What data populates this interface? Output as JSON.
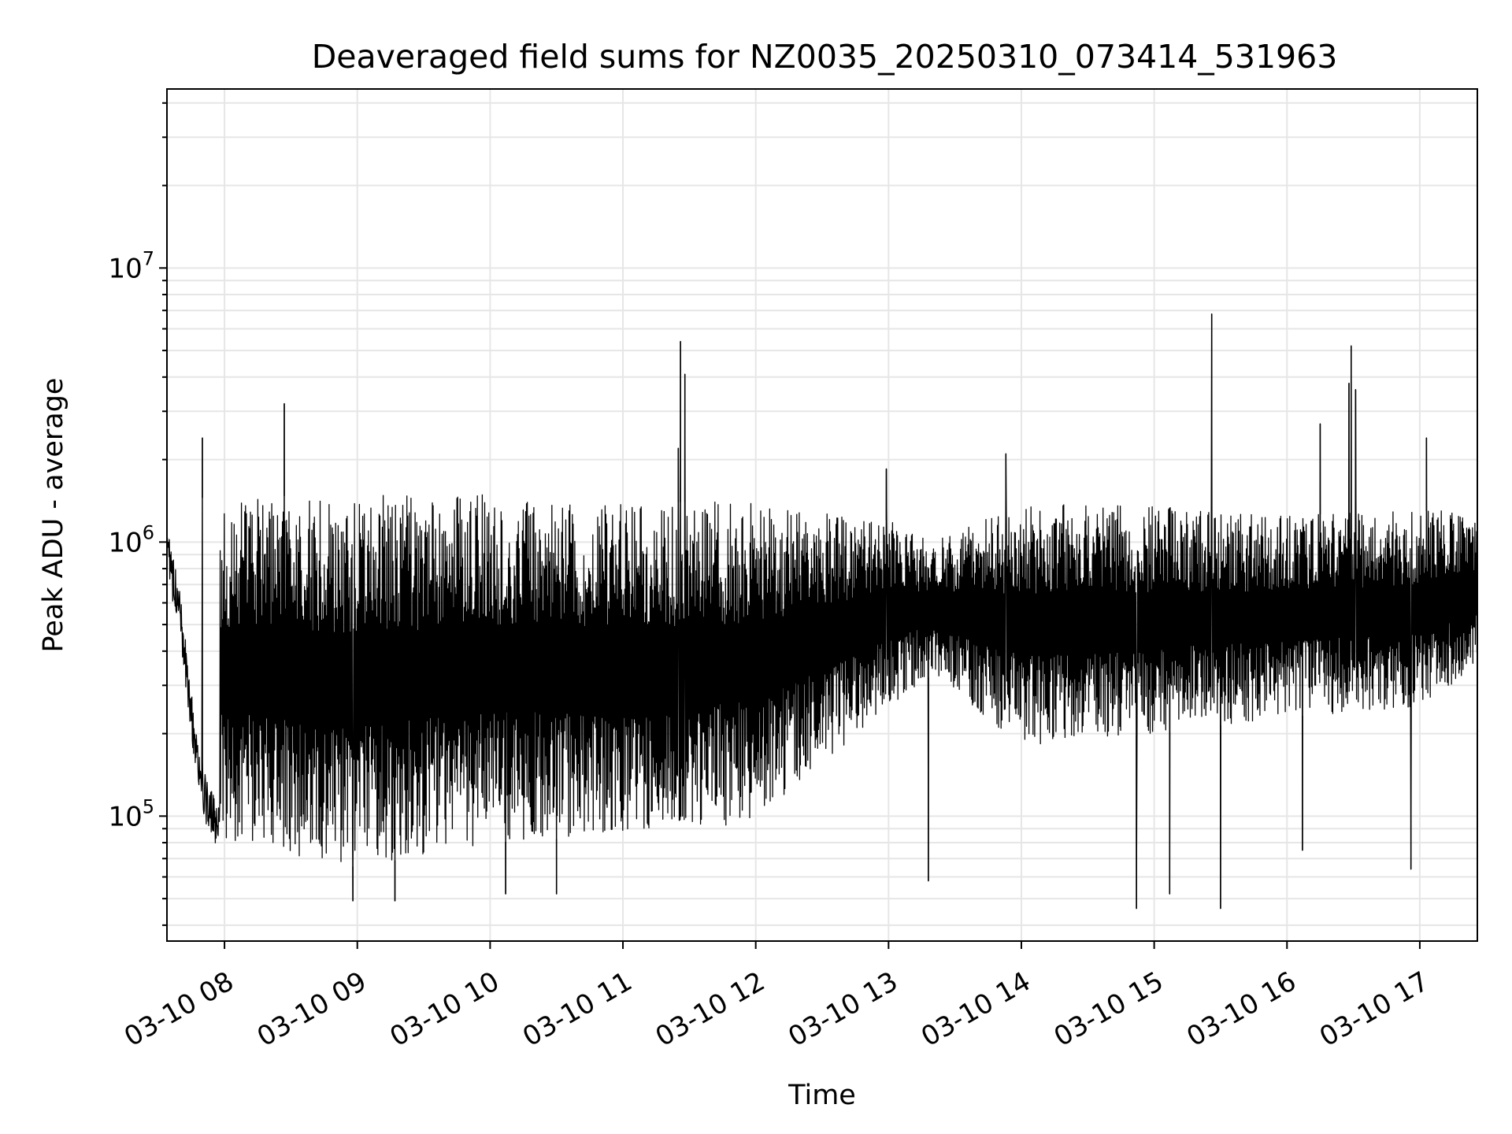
{
  "chart_data": {
    "type": "line",
    "title": "Deaveraged field sums for NZ0035_20250310_073414_531963",
    "xlabel": "Time",
    "ylabel": "Peak ADU - average",
    "x_axis": {
      "kind": "datetime",
      "range": [
        "2025-03-10 07:34",
        "2025-03-10 17:26"
      ],
      "ticks": [
        {
          "time": "2025-03-10 08:00",
          "label": "03-10 08"
        },
        {
          "time": "2025-03-10 09:00",
          "label": "03-10 09"
        },
        {
          "time": "2025-03-10 10:00",
          "label": "03-10 10"
        },
        {
          "time": "2025-03-10 11:00",
          "label": "03-10 11"
        },
        {
          "time": "2025-03-10 12:00",
          "label": "03-10 12"
        },
        {
          "time": "2025-03-10 13:00",
          "label": "03-10 13"
        },
        {
          "time": "2025-03-10 14:00",
          "label": "03-10 14"
        },
        {
          "time": "2025-03-10 15:00",
          "label": "03-10 15"
        },
        {
          "time": "2025-03-10 16:00",
          "label": "03-10 16"
        },
        {
          "time": "2025-03-10 17:00",
          "label": "03-10 17"
        }
      ]
    },
    "y_axis": {
      "scale": "log",
      "range": [
        35000,
        45000000
      ],
      "major_ticks": [
        {
          "value": 100000,
          "base": "10",
          "exp": "5"
        },
        {
          "value": 1000000,
          "base": "10",
          "exp": "6"
        },
        {
          "value": 10000000,
          "base": "10",
          "exp": "7"
        }
      ]
    },
    "grid": true,
    "line_color": "#000000",
    "grid_color": "#e6e6e6",
    "series": [
      {
        "time": [
          "2025-03-10 07:34",
          "2025-03-10 07:37",
          "2025-03-10 07:40",
          "2025-03-10 07:43",
          "2025-03-10 07:46",
          "2025-03-10 07:48",
          "2025-03-10 07:50",
          "2025-03-10 07:52",
          "2025-03-10 07:55",
          "2025-03-10 08:00",
          "2025-03-10 08:10",
          "2025-03-10 08:20",
          "2025-03-10 08:30",
          "2025-03-10 08:40",
          "2025-03-10 08:50",
          "2025-03-10 08:55",
          "2025-03-10 09:00",
          "2025-03-10 09:10",
          "2025-03-10 09:20",
          "2025-03-10 09:30",
          "2025-03-10 09:45",
          "2025-03-10 10:00",
          "2025-03-10 10:20",
          "2025-03-10 10:40",
          "2025-03-10 11:00",
          "2025-03-10 11:20",
          "2025-03-10 11:40",
          "2025-03-10 12:00",
          "2025-03-10 12:20",
          "2025-03-10 12:40",
          "2025-03-10 13:00",
          "2025-03-10 13:15",
          "2025-03-10 13:30",
          "2025-03-10 14:00",
          "2025-03-10 14:30",
          "2025-03-10 15:00",
          "2025-03-10 15:30",
          "2025-03-10 16:00",
          "2025-03-10 16:30",
          "2025-03-10 17:00",
          "2025-03-10 17:26"
        ],
        "peak_adu_minus_average": [
          1000000,
          700000,
          550000,
          330000,
          200000,
          160000,
          130000,
          110000,
          100000,
          90000,
          82000,
          85000,
          88000,
          80000,
          72000,
          65000,
          75000,
          90000,
          150000,
          250000,
          300000,
          350000,
          400000,
          450000,
          520000,
          560000,
          580000,
          600000,
          620000,
          640000,
          700000,
          650000,
          700000,
          750000,
          720000,
          760000,
          740000,
          700000,
          680000,
          620000,
          800000
        ]
      }
    ],
    "envelope": {
      "time": [
        "2025-03-10 08:00",
        "2025-03-10 09:00",
        "2025-03-10 10:00",
        "2025-03-10 11:00",
        "2025-03-10 12:00",
        "2025-03-10 13:00",
        "2025-03-10 13:20",
        "2025-03-10 14:00",
        "2025-03-10 15:00",
        "2025-03-10 16:00",
        "2025-03-10 17:00",
        "2025-03-10 17:26"
      ],
      "upper": [
        1450000,
        1500000,
        1500000,
        1400000,
        1400000,
        1200000,
        1000000,
        1400000,
        1350000,
        1250000,
        1300000,
        1300000
      ],
      "lower": [
        80000,
        65000,
        80000,
        85000,
        95000,
        250000,
        330000,
        180000,
        200000,
        230000,
        250000,
        350000
      ]
    },
    "spikes": [
      {
        "time": "2025-03-10 07:50",
        "value": 2400000
      },
      {
        "time": "2025-03-10 08:27",
        "value": 3200000
      },
      {
        "time": "2025-03-10 11:25",
        "value": 2200000
      },
      {
        "time": "2025-03-10 11:26",
        "value": 5400000
      },
      {
        "time": "2025-03-10 11:28",
        "value": 4100000
      },
      {
        "time": "2025-03-10 12:59",
        "value": 1850000
      },
      {
        "time": "2025-03-10 13:53",
        "value": 2100000
      },
      {
        "time": "2025-03-10 15:26",
        "value": 6800000
      },
      {
        "time": "2025-03-10 16:15",
        "value": 2700000
      },
      {
        "time": "2025-03-10 16:28",
        "value": 3800000
      },
      {
        "time": "2025-03-10 16:29",
        "value": 5200000
      },
      {
        "time": "2025-03-10 16:31",
        "value": 3600000
      },
      {
        "time": "2025-03-10 17:03",
        "value": 2400000
      }
    ],
    "dips": [
      {
        "time": "2025-03-10 08:58",
        "value": 49000
      },
      {
        "time": "2025-03-10 09:17",
        "value": 49000
      },
      {
        "time": "2025-03-10 10:07",
        "value": 52000
      },
      {
        "time": "2025-03-10 10:30",
        "value": 52000
      },
      {
        "time": "2025-03-10 13:18",
        "value": 58000
      },
      {
        "time": "2025-03-10 14:52",
        "value": 46000
      },
      {
        "time": "2025-03-10 15:07",
        "value": 52000
      },
      {
        "time": "2025-03-10 15:30",
        "value": 46000
      },
      {
        "time": "2025-03-10 16:07",
        "value": 75000
      },
      {
        "time": "2025-03-10 16:56",
        "value": 64000
      }
    ]
  }
}
